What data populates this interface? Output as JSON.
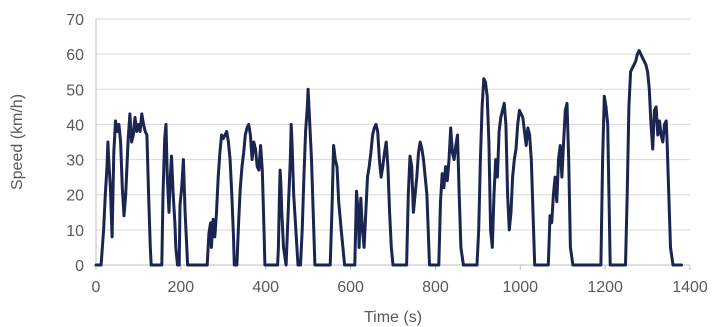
{
  "chart_data": {
    "type": "line",
    "title": "",
    "xlabel": "Time (s)",
    "ylabel": "Speed (km/h)",
    "xlim": [
      0,
      1400
    ],
    "ylim": [
      0,
      70
    ],
    "x_ticks": [
      0,
      200,
      400,
      600,
      800,
      1000,
      1200,
      1400
    ],
    "y_ticks": [
      0,
      10,
      20,
      30,
      40,
      50,
      60,
      70
    ],
    "grid": "horizontal",
    "legend": "none",
    "line_color": "#1a2550",
    "grid_color": "#d9d9d9",
    "axis_color": "#bfbfbf",
    "series": [
      {
        "x": [
          0,
          12,
          18,
          22,
          26,
          28,
          30,
          34,
          38,
          42,
          46,
          50,
          54,
          58,
          62,
          66,
          70,
          76,
          80,
          84,
          88,
          92,
          96,
          100,
          104,
          108,
          112,
          116,
          120,
          124,
          128,
          130,
          134,
          140,
          155,
          158,
          162,
          165,
          168,
          172,
          175,
          178,
          182,
          186,
          188,
          192,
          196,
          198,
          202,
          206,
          210,
          214,
          216,
          220,
          226,
          232,
          262,
          266,
          270,
          272,
          276,
          280,
          284,
          288,
          292,
          296,
          300,
          304,
          308,
          312,
          316,
          320,
          324,
          326,
          332,
          336,
          340,
          344,
          348,
          352,
          356,
          360,
          364,
          368,
          372,
          376,
          380,
          384,
          388,
          392,
          396,
          398,
          406,
          410,
          428,
          430,
          432,
          434,
          436,
          438,
          442,
          448,
          454,
          458,
          460,
          462,
          466,
          476,
          482,
          486,
          490,
          494,
          498,
          500,
          504,
          508,
          512,
          516,
          524,
          536,
          552,
          556,
          560,
          564,
          568,
          572,
          578,
          582,
          586,
          600,
          610,
          614,
          618,
          620,
          624,
          628,
          632,
          636,
          640,
          644,
          648,
          652,
          656,
          660,
          664,
          668,
          672,
          676,
          680,
          684,
          688,
          692,
          696,
          700,
          704,
          708,
          722,
          732,
          736,
          740,
          744,
          748,
          752,
          756,
          760,
          764,
          768,
          772,
          776,
          780,
          786,
          796,
          808,
          812,
          816,
          820,
          824,
          828,
          832,
          836,
          840,
          844,
          848,
          852,
          856,
          860,
          866,
          886,
          898,
          902,
          906,
          910,
          914,
          918,
          922,
          926,
          930,
          934,
          938,
          942,
          946,
          950,
          954,
          958,
          962,
          966,
          970,
          974,
          978,
          982,
          986,
          990,
          994,
          998,
          1002,
          1006,
          1010,
          1014,
          1018,
          1022,
          1026,
          1030,
          1034,
          1038,
          1042,
          1046,
          1052,
          1062,
          1066,
          1070,
          1074,
          1078,
          1082,
          1086,
          1090,
          1094,
          1098,
          1102,
          1106,
          1110,
          1114,
          1118,
          1124,
          1130,
          1176,
          1190,
          1194,
          1198,
          1202,
          1206,
          1212,
          1230,
          1248,
          1252,
          1256,
          1260,
          1264,
          1268,
          1272,
          1276,
          1280,
          1284,
          1288,
          1292,
          1296,
          1300,
          1304,
          1308,
          1312,
          1316,
          1320,
          1324,
          1328,
          1332,
          1336,
          1340,
          1344,
          1346,
          1350,
          1354,
          1360,
          1380
        ],
        "y": [
          0,
          0,
          10,
          20,
          28,
          35,
          30,
          22,
          8,
          32,
          41,
          38,
          40,
          35,
          22,
          14,
          20,
          36,
          43,
          35,
          37,
          42,
          38,
          40,
          38,
          43,
          40,
          38,
          37,
          20,
          5,
          0,
          0,
          0,
          0,
          20,
          36,
          40,
          25,
          15,
          25,
          31,
          20,
          12,
          5,
          0,
          0,
          17,
          22,
          30,
          15,
          5,
          0,
          0,
          0,
          0,
          0,
          9,
          12,
          5,
          13,
          8,
          15,
          25,
          32,
          37,
          36,
          37,
          38,
          35,
          30,
          20,
          8,
          0,
          0,
          12,
          22,
          28,
          32,
          37,
          39,
          40,
          37,
          30,
          35,
          33,
          28,
          27,
          34,
          27,
          10,
          0,
          0,
          0,
          0,
          5,
          18,
          27,
          22,
          15,
          5,
          0,
          18,
          30,
          40,
          35,
          20,
          0,
          0,
          10,
          25,
          38,
          45,
          50,
          40,
          30,
          15,
          0,
          0,
          0,
          0,
          15,
          34,
          30,
          28,
          18,
          10,
          5,
          0,
          0,
          0,
          21,
          15,
          5,
          19,
          10,
          5,
          15,
          25,
          28,
          32,
          37,
          39,
          40,
          38,
          30,
          25,
          28,
          32,
          35,
          28,
          15,
          5,
          0,
          0,
          0,
          0,
          0,
          20,
          31,
          28,
          15,
          20,
          25,
          32,
          35,
          33,
          30,
          25,
          20,
          0,
          0,
          0,
          18,
          26,
          22,
          28,
          24,
          30,
          39,
          32,
          30,
          34,
          37,
          20,
          5,
          0,
          0,
          0,
          10,
          30,
          45,
          53,
          52,
          48,
          35,
          10,
          5,
          20,
          30,
          25,
          38,
          42,
          44,
          46,
          40,
          20,
          10,
          15,
          25,
          30,
          33,
          40,
          44,
          43,
          42,
          38,
          34,
          39,
          37,
          30,
          15,
          0,
          0,
          0,
          0,
          0,
          0,
          0,
          14,
          12,
          20,
          25,
          18,
          30,
          34,
          25,
          35,
          44,
          46,
          30,
          5,
          0,
          0,
          0,
          0,
          30,
          48,
          45,
          40,
          0,
          0,
          0,
          20,
          45,
          55,
          56,
          57,
          58,
          60,
          61,
          60,
          59,
          58,
          57,
          55,
          50,
          40,
          33,
          44,
          45,
          37,
          41,
          37,
          35,
          40,
          41,
          35,
          20,
          5,
          0,
          0
        ]
      }
    ]
  }
}
